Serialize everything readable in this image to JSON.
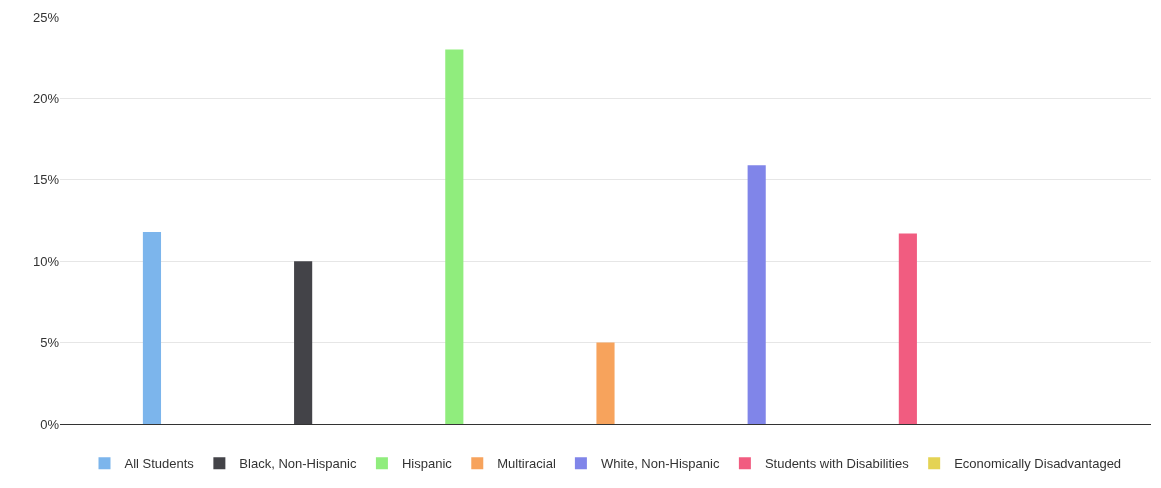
{
  "chart_data": {
    "type": "bar",
    "categories": [
      null
    ],
    "series": [
      {
        "name": "All Students",
        "color": "#7cb5ec",
        "values": [
          11.8
        ]
      },
      {
        "name": "Black, Non-Hispanic",
        "color": "#434348",
        "values": [
          10.0
        ]
      },
      {
        "name": "Hispanic",
        "color": "#90ed7d",
        "values": [
          23.0
        ]
      },
      {
        "name": "Multiracial",
        "color": "#f7a35c",
        "values": [
          5.0
        ]
      },
      {
        "name": "White, Non-Hispanic",
        "color": "#8085e9",
        "values": [
          15.9
        ]
      },
      {
        "name": "Students with Disabilities",
        "color": "#f15c80",
        "values": [
          11.7
        ]
      },
      {
        "name": "Economically Disadvantaged",
        "color": "#e4d354",
        "values": [
          null
        ]
      }
    ],
    "ylim": [
      0,
      25
    ],
    "yticks": [
      {
        "value": 0,
        "label": "0%"
      },
      {
        "value": 5,
        "label": "5%"
      },
      {
        "value": 10,
        "label": "10%"
      },
      {
        "value": 15,
        "label": "15%"
      },
      {
        "value": 20,
        "label": "20%"
      },
      {
        "value": 25,
        "label": "25%"
      }
    ],
    "grid": "y",
    "legend": "bottom"
  }
}
